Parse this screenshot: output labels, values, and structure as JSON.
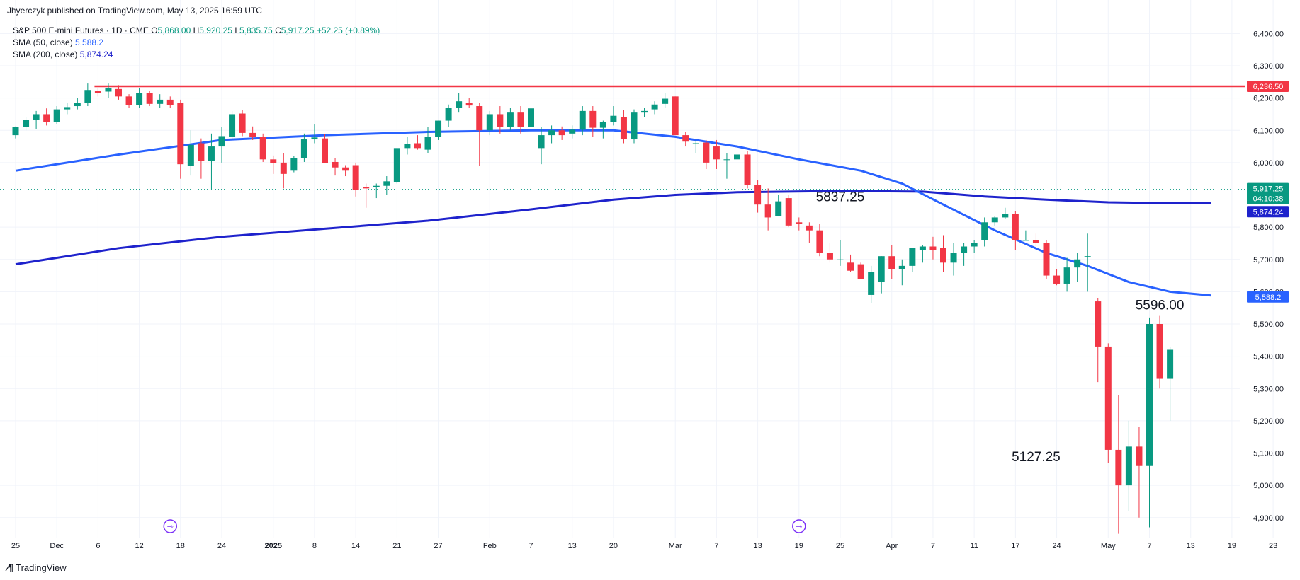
{
  "header": {
    "publisher": "Jhyerczyk published on TradingView.com, May 13, 2025 16:59 UTC"
  },
  "legend": {
    "symbol": "S&P 500 E-mini Futures · 1D · CME",
    "o_label": "O",
    "o_value": "5,868.00",
    "h_label": "H",
    "h_value": "5,920.25",
    "l_label": "L",
    "l_value": "5,835.75",
    "c_label": "C",
    "c_value": "5,917.25",
    "change": "+52.25 (+0.89%)",
    "sma50_label": "SMA (50, close)",
    "sma50_value": "5,588.2",
    "sma200_label": "SMA (200, close)",
    "sma200_value": "5,874.24"
  },
  "footer": {
    "brand": "TradingView"
  },
  "colors": {
    "up": "#089981",
    "down": "#f23645",
    "sma50": "#2962ff",
    "sma200": "#1e22cc",
    "resistance": "#f23645",
    "grid": "#f0f3fa",
    "axis_text": "#131722"
  },
  "chart_data": {
    "type": "candlestick",
    "instrument": "S&P 500 E-mini Futures",
    "timeframe": "1D",
    "ylim": [
      4860,
      6460
    ],
    "y_ticks": [
      "4,900.00",
      "5,000.00",
      "5,100.00",
      "5,200.00",
      "5,300.00",
      "5,400.00",
      "5,500.00",
      "5,600.00",
      "5,700.00",
      "5,800.00",
      "5,900.00",
      "6,000.00",
      "6,100.00",
      "6,200.00",
      "6,300.00",
      "6,400.00"
    ],
    "x_ticks": [
      {
        "label": "25",
        "bar": 0
      },
      {
        "label": "Dec",
        "bar": 4
      },
      {
        "label": "6",
        "bar": 8
      },
      {
        "label": "12",
        "bar": 12
      },
      {
        "label": "18",
        "bar": 16
      },
      {
        "label": "24",
        "bar": 20
      },
      {
        "label": "2025",
        "bar": 25
      },
      {
        "label": "8",
        "bar": 29
      },
      {
        "label": "14",
        "bar": 33
      },
      {
        "label": "21",
        "bar": 37
      },
      {
        "label": "27",
        "bar": 41
      },
      {
        "label": "Feb",
        "bar": 46
      },
      {
        "label": "7",
        "bar": 50
      },
      {
        "label": "13",
        "bar": 54
      },
      {
        "label": "20",
        "bar": 58
      },
      {
        "label": "Mar",
        "bar": 64
      },
      {
        "label": "7",
        "bar": 68
      },
      {
        "label": "13",
        "bar": 72
      },
      {
        "label": "19",
        "bar": 76
      },
      {
        "label": "25",
        "bar": 80
      },
      {
        "label": "Apr",
        "bar": 85
      },
      {
        "label": "7",
        "bar": 89
      },
      {
        "label": "11",
        "bar": 93
      },
      {
        "label": "17",
        "bar": 97
      },
      {
        "label": "24",
        "bar": 101
      },
      {
        "label": "May",
        "bar": 106
      },
      {
        "label": "7",
        "bar": 110
      },
      {
        "label": "13",
        "bar": 114
      },
      {
        "label": "19",
        "bar": 118
      },
      {
        "label": "23",
        "bar": 122
      }
    ],
    "candles": [
      [
        6085,
        6112,
        6075,
        6110
      ],
      [
        6110,
        6140,
        6100,
        6132
      ],
      [
        6132,
        6160,
        6105,
        6150
      ],
      [
        6150,
        6168,
        6115,
        6125
      ],
      [
        6125,
        6175,
        6120,
        6165
      ],
      [
        6165,
        6185,
        6150,
        6172
      ],
      [
        6175,
        6200,
        6165,
        6185
      ],
      [
        6185,
        6245,
        6175,
        6225
      ],
      [
        6222,
        6232,
        6205,
        6215
      ],
      [
        6220,
        6245,
        6200,
        6230
      ],
      [
        6228,
        6240,
        6195,
        6205
      ],
      [
        6205,
        6212,
        6170,
        6178
      ],
      [
        6178,
        6230,
        6170,
        6215
      ],
      [
        6215,
        6222,
        6175,
        6182
      ],
      [
        6182,
        6212,
        6170,
        6195
      ],
      [
        6195,
        6205,
        6170,
        6178
      ],
      [
        6185,
        6195,
        5950,
        5995
      ],
      [
        5990,
        6100,
        5960,
        6055
      ],
      [
        6060,
        6075,
        5950,
        6005
      ],
      [
        6005,
        6090,
        5915,
        6050
      ],
      [
        6050,
        6110,
        6000,
        6082
      ],
      [
        6080,
        6160,
        6070,
        6150
      ],
      [
        6152,
        6162,
        6082,
        6092
      ],
      [
        6092,
        6112,
        6070,
        6080
      ],
      [
        6080,
        6090,
        6002,
        6010
      ],
      [
        6010,
        6022,
        5965,
        5998
      ],
      [
        6000,
        6030,
        5920,
        5965
      ],
      [
        5975,
        6020,
        5970,
        6015
      ],
      [
        6015,
        6090,
        6002,
        6072
      ],
      [
        6072,
        6118,
        6060,
        6078
      ],
      [
        6075,
        6088,
        5998,
        5998
      ],
      [
        6002,
        6015,
        5960,
        5985
      ],
      [
        5985,
        5992,
        5958,
        5975
      ],
      [
        5992,
        6000,
        5895,
        5915
      ],
      [
        5925,
        5935,
        5860,
        5920
      ],
      [
        5925,
        5935,
        5890,
        5928
      ],
      [
        5928,
        5958,
        5900,
        5942
      ],
      [
        5940,
        6045,
        5935,
        6045
      ],
      [
        6045,
        6080,
        6025,
        6058
      ],
      [
        6060,
        6085,
        6040,
        6045
      ],
      [
        6040,
        6110,
        6030,
        6080
      ],
      [
        6080,
        6130,
        6070,
        6130
      ],
      [
        6130,
        6180,
        6110,
        6170
      ],
      [
        6170,
        6215,
        6155,
        6190
      ],
      [
        6185,
        6200,
        6170,
        6177
      ],
      [
        6175,
        6185,
        5990,
        6100
      ],
      [
        6100,
        6160,
        6085,
        6150
      ],
      [
        6150,
        6175,
        6090,
        6110
      ],
      [
        6110,
        6170,
        6100,
        6155
      ],
      [
        6155,
        6175,
        6090,
        6110
      ],
      [
        6110,
        6200,
        6085,
        6168
      ],
      [
        6045,
        6110,
        5995,
        6085
      ],
      [
        6085,
        6115,
        6060,
        6100
      ],
      [
        6100,
        6112,
        6070,
        6085
      ],
      [
        6090,
        6115,
        6075,
        6102
      ],
      [
        6102,
        6175,
        6085,
        6160
      ],
      [
        6160,
        6175,
        6080,
        6108
      ],
      [
        6108,
        6130,
        6075,
        6125
      ],
      [
        6125,
        6175,
        6115,
        6145
      ],
      [
        6140,
        6162,
        6060,
        6072
      ],
      [
        6072,
        6165,
        6060,
        6155
      ],
      [
        6155,
        6170,
        6140,
        6160
      ],
      [
        6165,
        6190,
        6150,
        6180
      ],
      [
        6182,
        6215,
        6170,
        6198
      ],
      [
        6205,
        6205,
        6095,
        6085
      ],
      [
        6085,
        6095,
        6050,
        6065
      ],
      [
        6060,
        6070,
        6030,
        6060
      ],
      [
        6062,
        6070,
        5980,
        6000
      ],
      [
        6050,
        6070,
        5980,
        6010
      ],
      [
        6010,
        6030,
        5950,
        6010
      ],
      [
        6010,
        6090,
        5960,
        6025
      ],
      [
        6025,
        6035,
        5920,
        5930
      ],
      [
        5930,
        5945,
        5845,
        5870
      ],
      [
        5870,
        5920,
        5790,
        5830
      ],
      [
        5835,
        5900,
        5840,
        5880
      ],
      [
        5890,
        5900,
        5800,
        5805
      ],
      [
        5815,
        5830,
        5790,
        5810
      ],
      [
        5805,
        5815,
        5750,
        5790
      ],
      [
        5790,
        5810,
        5710,
        5720
      ],
      [
        5720,
        5750,
        5690,
        5700
      ],
      [
        5700,
        5760,
        5680,
        5700
      ],
      [
        5690,
        5715,
        5660,
        5665
      ],
      [
        5685,
        5690,
        5640,
        5640
      ],
      [
        5590,
        5680,
        5565,
        5660
      ],
      [
        5630,
        5710,
        5595,
        5710
      ],
      [
        5710,
        5745,
        5640,
        5670
      ],
      [
        5670,
        5700,
        5620,
        5680
      ],
      [
        5680,
        5735,
        5660,
        5735
      ],
      [
        5730,
        5745,
        5690,
        5740
      ],
      [
        5740,
        5770,
        5700,
        5730
      ],
      [
        5735,
        5775,
        5660,
        5690
      ],
      [
        5690,
        5750,
        5650,
        5720
      ],
      [
        5720,
        5750,
        5680,
        5740
      ],
      [
        5740,
        5760,
        5720,
        5750
      ],
      [
        5760,
        5830,
        5740,
        5815
      ],
      [
        5815,
        5835,
        5805,
        5830
      ],
      [
        5830,
        5860,
        5825,
        5840
      ],
      [
        5840,
        5850,
        5730,
        5760
      ],
      [
        5760,
        5790,
        5760,
        5760
      ],
      [
        5760,
        5780,
        5740,
        5750
      ],
      [
        5750,
        5760,
        5640,
        5650
      ],
      [
        5650,
        5670,
        5620,
        5625
      ],
      [
        5625,
        5705,
        5600,
        5675
      ],
      [
        5675,
        5720,
        5630,
        5700
      ],
      [
        5710,
        5780,
        5600,
        5710
      ],
      [
        5570,
        5580,
        5320,
        5430
      ],
      [
        5430,
        5440,
        5070,
        5110
      ],
      [
        5110,
        5280,
        4850,
        5000
      ],
      [
        5000,
        5200,
        4920,
        5120
      ],
      [
        5120,
        5180,
        4900,
        5060
      ],
      [
        5060,
        5520,
        4870,
        5500
      ],
      [
        5500,
        5525,
        5300,
        5330
      ],
      [
        5330,
        5430,
        5200,
        5420
      ]
    ],
    "sma50": [
      [
        0,
        5975
      ],
      [
        10,
        6025
      ],
      [
        20,
        6070
      ],
      [
        30,
        6085
      ],
      [
        40,
        6095
      ],
      [
        50,
        6100
      ],
      [
        58,
        6100
      ],
      [
        64,
        6080
      ],
      [
        70,
        6050
      ],
      [
        76,
        6010
      ],
      [
        82,
        5975
      ],
      [
        86,
        5935
      ],
      [
        90,
        5870
      ],
      [
        95,
        5790
      ],
      [
        100,
        5720
      ],
      [
        104,
        5680
      ],
      [
        108,
        5630
      ],
      [
        112,
        5600
      ],
      [
        116,
        5588.2
      ]
    ],
    "sma200": [
      [
        0,
        5685
      ],
      [
        10,
        5735
      ],
      [
        20,
        5770
      ],
      [
        30,
        5795
      ],
      [
        40,
        5820
      ],
      [
        50,
        5855
      ],
      [
        58,
        5885
      ],
      [
        64,
        5900
      ],
      [
        70,
        5908
      ],
      [
        80,
        5912
      ],
      [
        88,
        5910
      ],
      [
        94,
        5895
      ],
      [
        100,
        5885
      ],
      [
        106,
        5877
      ],
      [
        112,
        5874.24
      ],
      [
        116,
        5874.24
      ]
    ],
    "resistance": {
      "value": 6236.5,
      "label": "6,236.50",
      "from_bar": 8
    },
    "last_price": {
      "value": 5917.25,
      "label": "5,917.25",
      "countdown": "04:10:38"
    },
    "sma200_last": {
      "value": 5874.24,
      "label": "5,874.24"
    },
    "sma50_last": {
      "value": 5588.2,
      "label": "5,588.2"
    },
    "annotations": [
      {
        "text": "5837.25",
        "bar": 80,
        "price": 5880
      },
      {
        "text": "5127.25",
        "bar": 99,
        "price": 5075
      },
      {
        "text": "5596.00",
        "bar": 111,
        "price": 5545
      }
    ],
    "event_markers": [
      {
        "bar": 15,
        "symbol": "⇾"
      },
      {
        "bar": 76,
        "symbol": "⇾"
      }
    ]
  }
}
